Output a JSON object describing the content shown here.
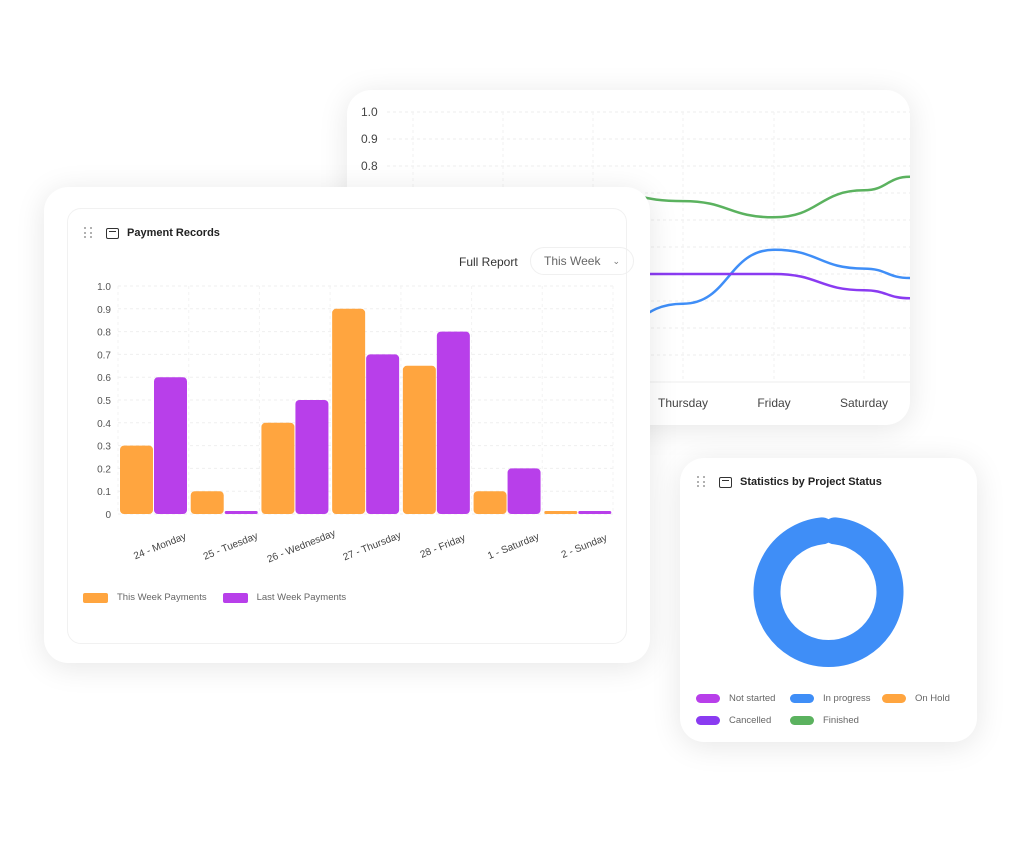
{
  "colors": {
    "orange": "#FFA53F",
    "purple": "#B83FEA",
    "blue": "#3F8EF7",
    "green": "#5BB25F",
    "violet": "#8A3BF1",
    "grid": "#ececec"
  },
  "payment_card": {
    "title": "Payment Records",
    "icon": "card-icon",
    "full_report": "Full Report",
    "period": "This Week",
    "chevron": "chevron-down-icon"
  },
  "status_card": {
    "title": "Statistics by Project Status",
    "icon": "report-icon"
  },
  "chart_data": [
    {
      "type": "bar",
      "title": "Payment Records",
      "categories": [
        "24 - Monday",
        "25 - Tuesday",
        "26 - Wednesday",
        "27 - Thursday",
        "28 - Friday",
        "1 - Saturday",
        "2 - Sunday"
      ],
      "series": [
        {
          "name": "This Week Payments",
          "color": "#FFA53F",
          "values": [
            0.3,
            0.1,
            0.4,
            0.9,
            0.65,
            0.1,
            0.01
          ]
        },
        {
          "name": "Last Week Payments",
          "color": "#B83FEA",
          "values": [
            0.6,
            0.01,
            0.5,
            0.7,
            0.8,
            0.2,
            0.01
          ]
        }
      ],
      "yticks": [
        "0",
        "0.1",
        "0.2",
        "0.3",
        "0.4",
        "0.5",
        "0.6",
        "0.7",
        "0.8",
        "0.9",
        "1.0"
      ],
      "ylim": [
        0,
        1
      ],
      "grid": true,
      "legend": "bottom-left"
    },
    {
      "type": "line",
      "categories": [
        "Thursday",
        "Friday",
        "Saturday"
      ],
      "series": [
        {
          "color": "#5BB25F",
          "values": [
            0.67,
            0.61,
            0.71
          ]
        },
        {
          "color": "#3F8EF7",
          "values": [
            0.29,
            0.49,
            0.42
          ]
        },
        {
          "color": "#8A3BF1",
          "values": [
            0.4,
            0.4,
            0.34
          ]
        }
      ],
      "yticks": [
        "0.8",
        "0.9",
        "1.0"
      ],
      "ylim": [
        0,
        1
      ],
      "grid": true
    },
    {
      "type": "pie",
      "title": "Statistics by Project Status",
      "donut": true,
      "labels": [
        "Not started",
        "In progress",
        "On Hold",
        "Cancelled",
        "Finished"
      ],
      "colors": [
        "#B83FEA",
        "#3F8EF7",
        "#FFA53F",
        "#8A3BF1",
        "#5BB25F"
      ],
      "values": [
        0,
        100,
        0,
        0,
        0
      ],
      "legend": "bottom"
    }
  ]
}
